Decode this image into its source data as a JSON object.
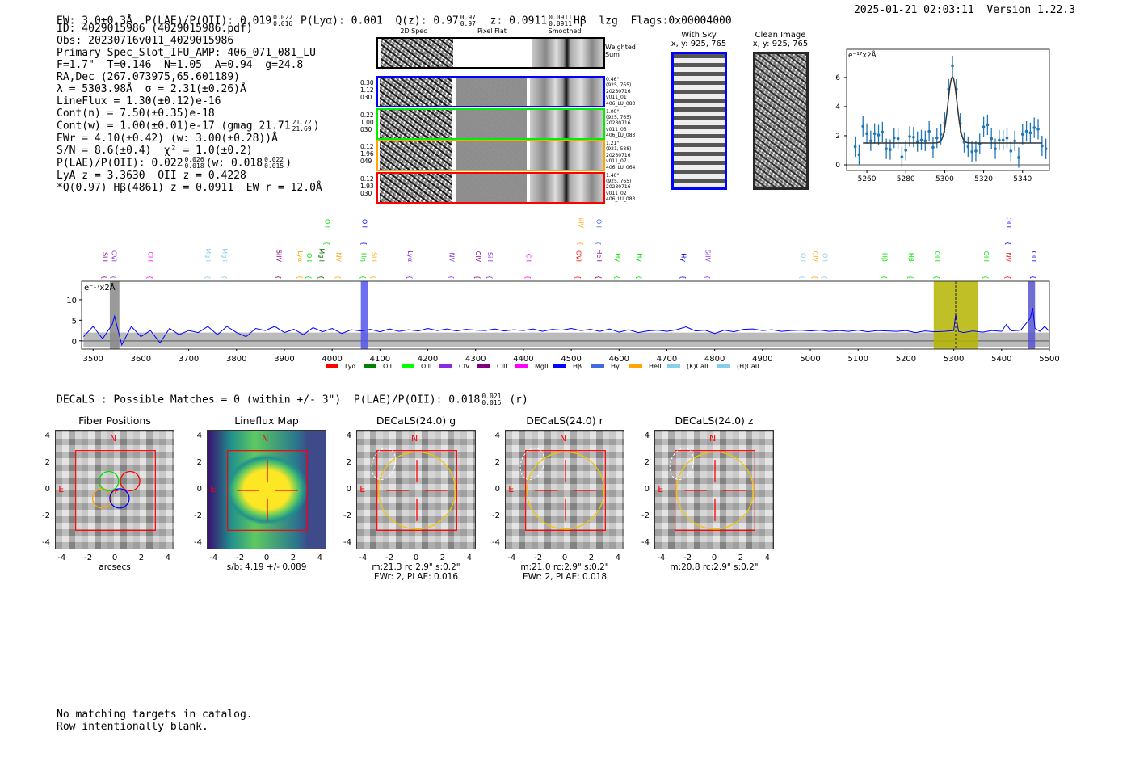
{
  "header": {
    "ew": "EW: 3.0±0.3Å",
    "plae_label": "P(LAE)/P(OII): 0.019",
    "plae_hi": "0.022",
    "plae_lo": "0.016",
    "plya": "P(Lyα): 0.001",
    "qz_label": "Q(z): 0.97",
    "qz_hi": "0.97",
    "qz_lo": "0.97",
    "z_label": "z: 0.0911",
    "z_hi": "0.0911",
    "z_lo": "0.0911",
    "z_line": "Hβ",
    "lzg": "lzg",
    "flags": "Flags:0x00004000",
    "timestamp": "2025-01-21 02:03:11",
    "version": "Version 1.22.3"
  },
  "info": {
    "lines": [
      "ID: 4029015986 (4029015986.pdf)",
      "Obs: 20230716v011_4029015986",
      "Primary Spec_Slot_IFU_AMP: 406_071_081_LU",
      "F=1.7\"  T=0.146  N=1.05  A=0.94  g=24.8",
      "RA,Dec (267.073975,65.601189)",
      "λ = 5303.98Å  σ = 2.31(±0.26)Å",
      "LineFlux = 1.30(±0.12)e-16",
      "Cont(n) = 7.50(±0.35)e-18"
    ],
    "cont_w": "Cont(w) = 1.00(±0.01)e-17 (gmag 21.71",
    "cont_w_hi": "21.72",
    "cont_w_lo": "21.69",
    "cont_w_end": ")",
    "ewr": "EWr = 4.10(±0.42) (w: 3.00(±0.28))Å",
    "sn": "S/N = 8.6(±0.4)  χ² = 1.0(±0.2)",
    "plae": "P(LAE)/P(OII): 0.022",
    "plae_hi": "0.026",
    "plae_lo": "0.018",
    "plae_w": "(w: 0.018",
    "plae_w_hi": "0.022",
    "plae_w_lo": "0.015",
    "plae_end": ")",
    "z1": "LyA z = 3.3630  OII z = 0.4228",
    "z2": "*Q(0.97) Hβ(4861) z = 0.0911  EW r = 12.0Å"
  },
  "spec2d": {
    "col_headers": [
      "2D Spec",
      "Pixel Flat",
      "Smoothed"
    ],
    "weighted_label": "Weighted Sum",
    "rows": [
      {
        "color": "#0000ff",
        "left": [
          "0.30",
          "1.12",
          "030"
        ],
        "right": [
          "0.46\"",
          "(925, 765)",
          "20230716",
          "v011_01",
          "406_LU_083"
        ]
      },
      {
        "color": "#00ee00",
        "left": [
          "0.22",
          "1.00",
          "030"
        ],
        "right": [
          "1.00\"",
          "(925, 765)",
          "20230716",
          "v011_03",
          "406_LU_083"
        ]
      },
      {
        "color": "#ffa500",
        "left": [
          "0.12",
          "1.96",
          "049"
        ],
        "right": [
          "1.21\"",
          "(921, 588)",
          "20230716",
          "v011_07",
          "406_LU_064"
        ]
      },
      {
        "color": "#ff0000",
        "left": [
          "0.12",
          "1.93",
          "030"
        ],
        "right": [
          "1.40\"",
          "(925, 765)",
          "20230716",
          "v011_02",
          "406_LU_083"
        ]
      }
    ]
  },
  "cutouts": {
    "with_sky": "With Sky",
    "with_sky_xy": "x, y: 925, 765",
    "clean": "Clean Image",
    "clean_xy": "x, y: 925, 765"
  },
  "chart_data": [
    {
      "type": "scatter",
      "name": "line-fit",
      "unit_label": "e⁻¹⁷x2Å",
      "xlim": [
        5249.6,
        5353.8
      ],
      "ylim": [
        -0.39,
        7.94
      ],
      "xticks": [
        5260,
        5280,
        5300,
        5320,
        5340
      ],
      "yticks": [
        0,
        2,
        4,
        6
      ],
      "x": [
        5254,
        5256,
        5258,
        5260,
        5262,
        5264,
        5266,
        5268,
        5270,
        5272,
        5274,
        5276,
        5278,
        5280,
        5282,
        5284,
        5286,
        5288,
        5290,
        5292,
        5294,
        5296,
        5298,
        5300,
        5302,
        5304,
        5306,
        5308,
        5310,
        5312,
        5314,
        5316,
        5318,
        5320,
        5322,
        5324,
        5326,
        5328,
        5330,
        5332,
        5334,
        5336,
        5338,
        5340,
        5342,
        5344,
        5346,
        5348,
        5350,
        5352
      ],
      "y": [
        1.25,
        0.7,
        2.65,
        2.15,
        1.65,
        2.15,
        2.05,
        2.25,
        1.1,
        1.05,
        1.85,
        1.8,
        0.55,
        1.0,
        1.95,
        1.9,
        1.6,
        1.7,
        1.65,
        2.3,
        1.2,
        1.85,
        2.1,
        2.9,
        5.2,
        6.8,
        5.2,
        2.85,
        1.55,
        1.25,
        0.9,
        0.95,
        1.45,
        2.6,
        2.75,
        1.8,
        1.1,
        1.7,
        1.7,
        1.85,
        0.95,
        1.65,
        0.5,
        2.1,
        2.3,
        2.2,
        2.55,
        2.45,
        1.3,
        1.1
      ],
      "yerr": 0.7,
      "fit": {
        "center": 5304,
        "sigma": 2.31,
        "amplitude": 4.55,
        "continuum": 1.5,
        "range": [
          5258,
          5350
        ]
      }
    },
    {
      "type": "line",
      "name": "full-spectrum",
      "unit_label": "e⁻¹⁷x2Å",
      "xlim": [
        3476,
        5500
      ],
      "ylim": [
        -2,
        14.5
      ],
      "xticks": [
        3500,
        3600,
        3700,
        3800,
        3900,
        4000,
        4100,
        4200,
        4300,
        4400,
        4500,
        4600,
        4700,
        4800,
        4900,
        5000,
        5100,
        5200,
        5300,
        5400,
        5500
      ],
      "yticks": [
        0,
        5,
        10
      ],
      "x": [
        3480,
        3500,
        3520,
        3540,
        3545,
        3560,
        3580,
        3600,
        3620,
        3640,
        3660,
        3680,
        3700,
        3720,
        3740,
        3760,
        3780,
        3800,
        3820,
        3840,
        3860,
        3880,
        3900,
        3920,
        3940,
        3960,
        3980,
        4000,
        4020,
        4040,
        4060,
        4080,
        4100,
        4120,
        4140,
        4160,
        4180,
        4200,
        4220,
        4240,
        4260,
        4280,
        4300,
        4320,
        4340,
        4360,
        4380,
        4400,
        4420,
        4440,
        4460,
        4480,
        4500,
        4520,
        4540,
        4560,
        4580,
        4600,
        4620,
        4640,
        4660,
        4680,
        4700,
        4720,
        4740,
        4760,
        4780,
        4800,
        4820,
        4840,
        4860,
        4880,
        4900,
        4920,
        4940,
        4960,
        4980,
        5000,
        5020,
        5040,
        5060,
        5080,
        5100,
        5120,
        5140,
        5160,
        5180,
        5200,
        5220,
        5240,
        5260,
        5280,
        5300,
        5304,
        5310,
        5320,
        5340,
        5360,
        5380,
        5400,
        5410,
        5420,
        5440,
        5460,
        5465,
        5470,
        5480,
        5490,
        5500
      ],
      "y": [
        1,
        3.5,
        0.5,
        4,
        6,
        -1,
        3.5,
        1,
        2.5,
        -0.5,
        3,
        1.5,
        2.5,
        2,
        3.5,
        1.5,
        3.5,
        2,
        1,
        3,
        2.5,
        3.5,
        2,
        2.8,
        1.5,
        3.2,
        2.2,
        3,
        1.8,
        2.7,
        2.4,
        2.8,
        2.2,
        2.9,
        2.3,
        2.7,
        2.4,
        3,
        2.5,
        2.9,
        2.4,
        2.8,
        2.6,
        2.5,
        2.9,
        2.4,
        2.7,
        2.5,
        2.9,
        2.3,
        2.8,
        2.6,
        3,
        2.5,
        2.8,
        2.3,
        2.9,
        2.1,
        2.7,
        2,
        2.4,
        2.6,
        2.3,
        2.7,
        3.4,
        2.4,
        2.6,
        1.8,
        2.6,
        2.2,
        2.8,
        2.9,
        2.5,
        2.7,
        2.3,
        2.5,
        2.6,
        2.4,
        2.6,
        2.3,
        2.5,
        2.3,
        2.6,
        2.2,
        2.5,
        2.4,
        2.3,
        2.5,
        2,
        2.4,
        2.2,
        2.3,
        2.5,
        6.5,
        2.3,
        2,
        2.4,
        2.1,
        2.5,
        2.3,
        4,
        2.4,
        2.6,
        5.5,
        8,
        3,
        2.3,
        3.5,
        2.3
      ],
      "err": 2,
      "regions": [
        {
          "range": [
            3535,
            3555
          ],
          "color": "#888888"
        },
        {
          "range": [
            4060,
            4075
          ],
          "color": "#5555ee"
        },
        {
          "range": [
            5258,
            5350
          ],
          "color": "#b5b500"
        },
        {
          "range": [
            5455,
            5470
          ],
          "color": "#5555cc"
        }
      ],
      "marker": 5304,
      "line_labels": [
        {
          "w": 3525,
          "t": "SiII",
          "c": "#800080",
          "row": 0
        },
        {
          "w": 3542,
          "t": "OVI",
          "c": "#8a2be2",
          "row": 0
        },
        {
          "w": 3620,
          "t": "CIII",
          "c": "#ff00ff",
          "row": 0
        },
        {
          "w": 3740,
          "t": "MgII",
          "c": "#87ceeb",
          "row": 0
        },
        {
          "w": 3775,
          "t": "MgII",
          "c": "#87ceeb",
          "row": 0
        },
        {
          "w": 3888,
          "t": "SiIV",
          "c": "#800080",
          "row": 0
        },
        {
          "w": 3933,
          "t": "Lyα",
          "c": "#ffa500",
          "row": 0
        },
        {
          "w": 3950,
          "t": "OII",
          "c": "#00dd00",
          "row": 0
        },
        {
          "w": 3978,
          "t": "MgII",
          "c": "#006400",
          "row": 0
        },
        {
          "w": 4013,
          "t": "NV",
          "c": "#ffa500",
          "row": 0
        },
        {
          "w": 4066,
          "t": "Hη",
          "c": "#00dd00",
          "row": 0
        },
        {
          "w": 4088,
          "t": "SiII",
          "c": "#ffa500",
          "row": 0
        },
        {
          "w": 4163,
          "t": "Lyα",
          "c": "#8a2be2",
          "row": 0
        },
        {
          "w": 4250,
          "t": "NV",
          "c": "#8a2be2",
          "row": 0
        },
        {
          "w": 4305,
          "t": "CIV",
          "c": "#800080",
          "row": 0
        },
        {
          "w": 4330,
          "t": "SiII",
          "c": "#8a2be2",
          "row": 0
        },
        {
          "w": 4410,
          "t": "CII",
          "c": "#ff00ff",
          "row": 0
        },
        {
          "w": 4515,
          "t": "OVI",
          "c": "#ff0000",
          "row": 0
        },
        {
          "w": 4558,
          "t": "HeII",
          "c": "#800080",
          "row": 0
        },
        {
          "w": 4597,
          "t": "Hγ",
          "c": "#00dd00",
          "row": 0
        },
        {
          "w": 4643,
          "t": "Hγ",
          "c": "#00dd00",
          "row": 0
        },
        {
          "w": 4735,
          "t": "Hγ",
          "c": "#0000ff",
          "row": 0
        },
        {
          "w": 4785,
          "t": "SiIV",
          "c": "#8a2be2",
          "row": 0
        },
        {
          "w": 4985,
          "t": "OII",
          "c": "#87ceeb",
          "row": 0
        },
        {
          "w": 5010,
          "t": "CIV",
          "c": "#ffa500",
          "row": 0
        },
        {
          "w": 5030,
          "t": "OII",
          "c": "#87ceeb",
          "row": 0
        },
        {
          "w": 5155,
          "t": "Hβ",
          "c": "#00dd00",
          "row": 0
        },
        {
          "w": 5210,
          "t": "Hβ",
          "c": "#00dd00",
          "row": 0
        },
        {
          "w": 5265,
          "t": "OIII",
          "c": "#00dd00",
          "row": 0
        },
        {
          "w": 5367,
          "t": "OIII",
          "c": "#00dd00",
          "row": 0
        },
        {
          "w": 5414,
          "t": "NV",
          "c": "#ff0000",
          "row": 0
        },
        {
          "w": 5467,
          "t": "OIII",
          "c": "#0000ff",
          "row": 0
        },
        {
          "w": 3990,
          "t": "OII",
          "c": "#00dd00",
          "row": 1
        },
        {
          "w": 4067,
          "t": "OII",
          "c": "#0000ff",
          "row": 1
        },
        {
          "w": 4520,
          "t": "SiIV",
          "c": "#ffa500",
          "row": 1
        },
        {
          "w": 4557,
          "t": "OII",
          "c": "#4169e1",
          "row": 1
        },
        {
          "w": 5415,
          "t": "OIII",
          "c": "#0000ff",
          "row": 1
        }
      ],
      "legend": [
        {
          "t": "Lyα",
          "c": "#ff0000"
        },
        {
          "t": "OII",
          "c": "#008000"
        },
        {
          "t": "OIII",
          "c": "#00ff00"
        },
        {
          "t": "CIV",
          "c": "#8a2be2"
        },
        {
          "t": "CIII",
          "c": "#800080"
        },
        {
          "t": "MgII",
          "c": "#ff00ff"
        },
        {
          "t": "Hβ",
          "c": "#0000ff"
        },
        {
          "t": "Hγ",
          "c": "#4169e1"
        },
        {
          "t": "HeII",
          "c": "#ffa500"
        },
        {
          "t": "(K)CaII",
          "c": "#87ceeb"
        },
        {
          "t": "(H)CaII",
          "c": "#87ceeb"
        }
      ],
      "legend_placement": "bottom"
    }
  ],
  "decals": {
    "summary": "DECaLS : Possible Matches = 0 (within +/- 3\")  P(LAE)/P(OII): 0.018",
    "summary_hi": "0.021",
    "summary_lo": "0.015",
    "summary_end": "(r)",
    "axis_range": [
      -4.5,
      4.5
    ],
    "ticks": [
      -4,
      -2,
      0,
      2,
      4
    ],
    "panels": [
      {
        "title": "Fiber Positions",
        "captions": [
          "arcsecs"
        ],
        "kind": "fiber"
      },
      {
        "title": "Lineflux Map",
        "captions": [
          "s/b: 4.19 +/- 0.089"
        ],
        "kind": "flux"
      },
      {
        "title": "DECaLS(24.0) g",
        "captions": [
          "m:21.3 rc:2.9\"  s:0.2\"",
          "EWr: 2, PLAE: 0.016"
        ],
        "kind": "img"
      },
      {
        "title": "DECaLS(24.0) r",
        "captions": [
          "m:21.0 rc:2.9\"  s:0.2\"",
          "EWr: 2, PLAE: 0.018"
        ],
        "kind": "img"
      },
      {
        "title": "DECaLS(24.0) z",
        "captions": [
          "m:20.8 rc:2.9\"  s:0.2\""
        ],
        "kind": "img"
      }
    ],
    "north": "N",
    "east": "E"
  },
  "catalog": {
    "line1": "No matching targets in catalog.",
    "line2": "Row intentionally blank."
  }
}
